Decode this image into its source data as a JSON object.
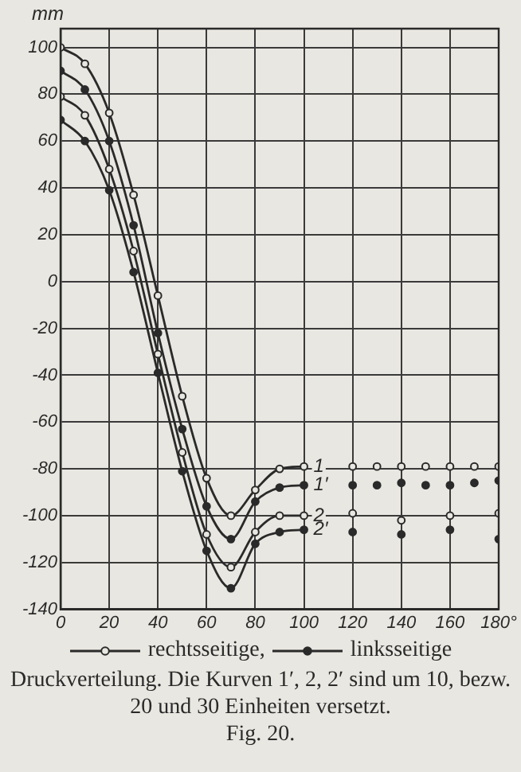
{
  "chart_data": {
    "type": "line",
    "ylabel": "mm",
    "xlim": [
      0,
      180
    ],
    "ylim": [
      -140,
      108
    ],
    "xticks": [
      0,
      20,
      40,
      60,
      80,
      100,
      120,
      140,
      160,
      {
        "value": 180,
        "label": "180°"
      }
    ],
    "yticks": [
      -140,
      -120,
      -100,
      -80,
      -60,
      -40,
      -20,
      0,
      20,
      40,
      60,
      80,
      100
    ],
    "grid": true,
    "line_style": "solid",
    "series": [
      {
        "name": "1",
        "type": "line",
        "marker": "circle-open",
        "color": "#2a2a2a",
        "x": [
          0,
          10,
          20,
          30,
          40,
          50,
          60,
          70,
          80,
          90,
          100
        ],
        "values": [
          100,
          93,
          72,
          37,
          -6,
          -49,
          -84,
          -100,
          -89,
          -80,
          -79
        ]
      },
      {
        "type": "scatter",
        "marker": "circle-open",
        "color": "#2a2a2a",
        "x": [
          120,
          130,
          140,
          150,
          160,
          170,
          180
        ],
        "values": [
          -79,
          -79,
          -79,
          -79,
          -79,
          -79,
          -79
        ]
      },
      {
        "name": "1′",
        "type": "line",
        "marker": "circle",
        "color": "#2a2a2a",
        "x": [
          0,
          10,
          20,
          30,
          40,
          50,
          60,
          70,
          80,
          90,
          100
        ],
        "values": [
          90,
          82,
          60,
          24,
          -22,
          -63,
          -96,
          -110,
          -94,
          -88,
          -87
        ]
      },
      {
        "type": "scatter",
        "marker": "circle",
        "color": "#2a2a2a",
        "x": [
          120,
          130,
          140,
          150,
          160,
          170,
          180
        ],
        "values": [
          -87,
          -87,
          -86,
          -87,
          -87,
          -86,
          -85
        ]
      },
      {
        "name": "2",
        "type": "line",
        "marker": "circle-open",
        "color": "#2a2a2a",
        "x": [
          0,
          10,
          20,
          30,
          40,
          50,
          60,
          70,
          80,
          90,
          100
        ],
        "values": [
          79,
          71,
          48,
          13,
          -31,
          -73,
          -108,
          -122,
          -107,
          -100,
          -100
        ]
      },
      {
        "type": "scatter",
        "marker": "circle-open",
        "color": "#2a2a2a",
        "x": [
          120,
          140,
          160,
          180
        ],
        "values": [
          -99,
          -102,
          -100,
          -99
        ]
      },
      {
        "name": "2′",
        "type": "line",
        "marker": "circle",
        "color": "#2a2a2a",
        "x": [
          0,
          10,
          20,
          30,
          40,
          50,
          60,
          70,
          80,
          90,
          100
        ],
        "values": [
          69,
          60,
          39,
          4,
          -39,
          -81,
          -115,
          -131,
          -112,
          -107,
          -106
        ]
      },
      {
        "type": "scatter",
        "marker": "circle",
        "color": "#2a2a2a",
        "x": [
          120,
          140,
          160,
          180
        ],
        "values": [
          -107,
          -108,
          -106,
          -110
        ]
      }
    ],
    "annotations": [
      "rechtsseitige,",
      "linksseitige",
      "Druckverteilung. Die Kurven 1′, 2, 2′ sind um 10, bezw. 20 und 30 Einheiten versetzt.",
      "Fig. 20."
    ]
  }
}
